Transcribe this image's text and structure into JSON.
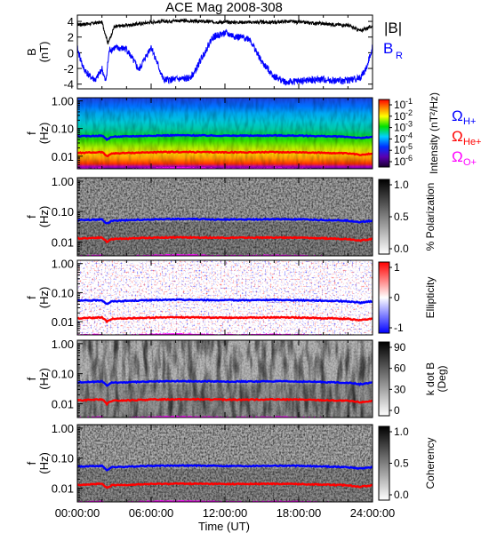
{
  "title": "ACE Mag 2008-308",
  "xaxis": {
    "label": "Time (UT)",
    "ticks": [
      "00:00:00",
      "06:00:00",
      "12:00:00",
      "18:00:00",
      "24:00:00"
    ]
  },
  "colors": {
    "B_total": "#000000",
    "B_R": "#0000ff",
    "H_plus": "#0000ff",
    "He_plus": "#ff0000",
    "O_plus": "#ff00ff"
  },
  "chart_data": [
    {
      "type": "line",
      "panel": "field",
      "ylabel": [
        "B",
        "(nT)"
      ],
      "ylim": [
        -4.6,
        4.8
      ],
      "yticks": [
        "4",
        "2",
        "0",
        "-2",
        "-4"
      ],
      "legend": {
        "total": "|B|",
        "radial": "B",
        "radial_sub": "R"
      },
      "series": [
        {
          "name": "|B|",
          "x": [
            0,
            1,
            2,
            2.5,
            3,
            4,
            5,
            6,
            8,
            10,
            12,
            14,
            16,
            17,
            18,
            20,
            22,
            23,
            24
          ],
          "values": [
            3.6,
            3.7,
            3.9,
            1.2,
            3.3,
            3.5,
            3.7,
            3.9,
            4.1,
            4.0,
            3.9,
            3.9,
            3.9,
            4.0,
            3.9,
            3.7,
            3.5,
            2.8,
            3.4
          ]
        },
        {
          "name": "B_R",
          "x": [
            0,
            0.5,
            1,
            1.5,
            2,
            2.3,
            2.6,
            3,
            4,
            5,
            6,
            7,
            8,
            9,
            9.5,
            10,
            11,
            12,
            13,
            14,
            15,
            16,
            17,
            18,
            19,
            20,
            21,
            22,
            23,
            23.5,
            24
          ],
          "values": [
            0.5,
            -2.0,
            -3.0,
            -3.5,
            -2.0,
            -3.8,
            0.3,
            0.6,
            0.5,
            -2.2,
            0.8,
            -3.5,
            -3.4,
            -3.3,
            -2.6,
            -1.0,
            2.0,
            2.5,
            2.0,
            1.8,
            -1.2,
            -3.0,
            -3.8,
            -3.6,
            -3.5,
            -3.4,
            -3.6,
            -3.5,
            -3.2,
            -2.0,
            0.8
          ]
        }
      ]
    },
    {
      "type": "heatmap",
      "panel": "intensity",
      "ylabel": [
        "f",
        "(Hz)"
      ],
      "yticks": [
        "1.00",
        "0.10",
        "0.01"
      ],
      "ylim_hz": [
        0.0035,
        1.3
      ],
      "colorbar": {
        "label": "Intensity (nT²/Hz)",
        "ticks": [
          "10",
          "10",
          "10",
          "10",
          "10",
          "10"
        ],
        "exponents": [
          "-1",
          "-2",
          "-3",
          "-4",
          "-5",
          "-6"
        ],
        "scale": "rainbow"
      },
      "legend": [
        {
          "symbol": "Ω",
          "sub": "H+",
          "color": "#0000ff"
        },
        {
          "symbol": "Ω",
          "sub": "He+",
          "color": "#ff0000"
        },
        {
          "symbol": "Ω",
          "sub": "O+",
          "color": "#ff00ff"
        }
      ]
    },
    {
      "type": "heatmap",
      "panel": "polarization",
      "ylabel": [
        "f",
        "(Hz)"
      ],
      "yticks": [
        "1.00",
        "0.10",
        "0.01"
      ],
      "colorbar": {
        "label": "% Polarization",
        "ticks": [
          "1.0",
          "0.5",
          "0.0"
        ],
        "scale": "gray"
      }
    },
    {
      "type": "heatmap",
      "panel": "ellipticity",
      "ylabel": [
        "f",
        "(Hz)"
      ],
      "yticks": [
        "1.00",
        "0.10",
        "0.01"
      ],
      "colorbar": {
        "label": "Ellipticity",
        "ticks": [
          "1",
          "0",
          "-1"
        ],
        "scale": "red-white-blue"
      }
    },
    {
      "type": "heatmap",
      "panel": "wave-normal-angle",
      "ylabel": [
        "f",
        "(Hz)"
      ],
      "yticks": [
        "1.00",
        "0.10",
        "0.01"
      ],
      "colorbar": {
        "label": "k dot B",
        "label2": "(Deg)",
        "ticks": [
          "90",
          "60",
          "30",
          "0"
        ],
        "scale": "gray"
      }
    },
    {
      "type": "heatmap",
      "panel": "coherency",
      "ylabel": [
        "f",
        "(Hz)"
      ],
      "yticks": [
        "1.00",
        "0.10",
        "0.01"
      ],
      "colorbar": {
        "label": "Coherency",
        "ticks": [
          "1.0",
          "0.5",
          "0.0"
        ],
        "scale": "gray"
      }
    }
  ],
  "gyrofrequency_hz": {
    "x": [
      0,
      2,
      2.4,
      2.8,
      4,
      6,
      8,
      10,
      12,
      14,
      16,
      18,
      20,
      22,
      23,
      24
    ],
    "H_plus": [
      0.052,
      0.055,
      0.04,
      0.05,
      0.052,
      0.055,
      0.057,
      0.056,
      0.055,
      0.055,
      0.056,
      0.055,
      0.053,
      0.05,
      0.045,
      0.05
    ],
    "He_plus": [
      0.013,
      0.014,
      0.01,
      0.0125,
      0.013,
      0.0138,
      0.0142,
      0.014,
      0.0138,
      0.0138,
      0.014,
      0.0138,
      0.0132,
      0.0125,
      0.0112,
      0.0125
    ],
    "O_plus": [
      0.0033,
      0.0035,
      0.0025,
      0.0031,
      0.0033,
      0.0035,
      0.0036,
      0.0035,
      0.0034,
      0.0034,
      0.0035,
      0.0034,
      0.0033,
      0.0031,
      0.0028,
      0.0031
    ]
  }
}
